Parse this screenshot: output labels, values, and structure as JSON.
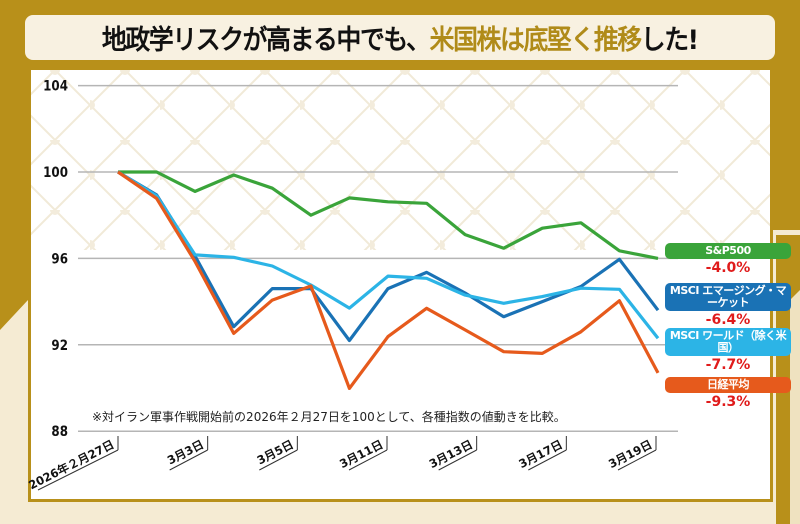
{
  "title": {
    "part1": "地政学リスクが高まる中でも、",
    "highlight": "米国株は底堅く推移",
    "part2": "した!"
  },
  "colors": {
    "gold": "#b8901a",
    "cream": "#f5ebd3",
    "grid": "#b5b5b5",
    "negative": "#e01b1b"
  },
  "legend": [
    {
      "label": "S&P500",
      "change": "-4.0%",
      "color": "#3aa43a"
    },
    {
      "label": "MSCI エマージング・マーケット",
      "change": "-6.4%",
      "color": "#1a72b5"
    },
    {
      "label": "MSCI ワールド（除く米国）",
      "change": "-7.7%",
      "color": "#2cb4e6"
    },
    {
      "label": "日経平均",
      "change": "-9.3%",
      "color": "#e65a1c"
    }
  ],
  "chart_data": {
    "type": "line",
    "note": "※対イラン軍事作戦開始前の2026年２月27日を100として、各種指数の値動きを比較。",
    "x_tick_labels": [
      "2026年２月27日",
      "3月3日",
      "3月5日",
      "3月11日",
      "3月13日",
      "3月17日",
      "3月19日"
    ],
    "y_ticks": [
      88,
      92,
      96,
      100,
      104
    ],
    "ylim": [
      88,
      104
    ],
    "grid": "horizontal",
    "legend_placement": "right",
    "series": [
      {
        "name": "S&P500",
        "color": "#3aa43a",
        "values": [
          100,
          100.0,
          99.1,
          99.86,
          99.25,
          98.0,
          98.8,
          98.62,
          98.55,
          97.1,
          96.47,
          97.4,
          97.65,
          96.35,
          96.0
        ]
      },
      {
        "name": "MSCI エマージング・マーケット",
        "color": "#1a72b5",
        "values": [
          100,
          98.94,
          96.1,
          92.84,
          94.6,
          94.6,
          92.2,
          94.6,
          95.35,
          94.4,
          93.3,
          94.0,
          94.7,
          95.96,
          93.6
        ]
      },
      {
        "name": "MSCI ワールド（除く米国）",
        "color": "#2cb4e6",
        "values": [
          100,
          98.9,
          96.16,
          96.05,
          95.65,
          94.77,
          93.7,
          95.18,
          95.08,
          94.3,
          93.92,
          94.23,
          94.62,
          94.57,
          92.3
        ]
      },
      {
        "name": "日経平均",
        "color": "#e65a1c",
        "values": [
          100,
          98.78,
          95.85,
          92.53,
          94.07,
          94.72,
          89.98,
          92.38,
          93.69,
          92.69,
          91.68,
          91.6,
          92.6,
          94.04,
          90.7
        ]
      }
    ]
  }
}
